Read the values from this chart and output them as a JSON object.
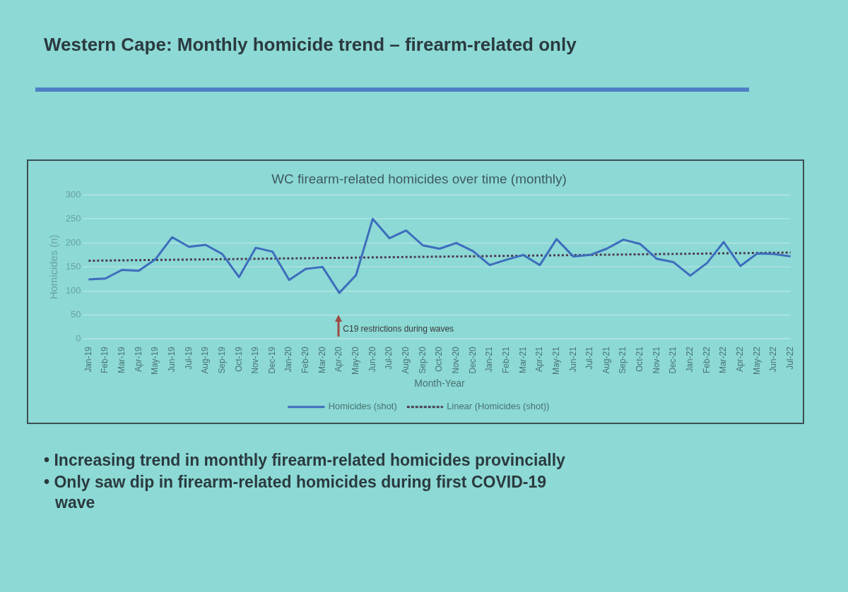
{
  "chart_data": {
    "type": "line",
    "title": "Western Cape: Monthly homicide trend – firearm-related only",
    "subtitle": "WC firearm-related homicides over time (monthly)",
    "xlabel": "Month-Year",
    "ylabel": "Homicides (n)",
    "categories": [
      "Jan-19",
      "Feb-19",
      "Mar-19",
      "Apr-19",
      "May-19",
      "Jun-19",
      "Jul-19",
      "Aug-19",
      "Sep-19",
      "Oct-19",
      "Nov-19",
      "Dec-19",
      "Jan-20",
      "Feb-20",
      "Mar-20",
      "Apr-20",
      "May-20",
      "Jun-20",
      "Jul-20",
      "Aug-20",
      "Sep-20",
      "Oct-20",
      "Nov-20",
      "Dec-20",
      "Jan-21",
      "Feb-21",
      "Mar-21",
      "Apr-21",
      "May-21",
      "Jun-21",
      "Jul-21",
      "Aug-21",
      "Sep-21",
      "Oct-21",
      "Nov-21",
      "Dec-21",
      "Jan-22",
      "Feb-22",
      "Mar-22",
      "Apr-22",
      "May-22",
      "Jun-22",
      "Jul-22"
    ],
    "series": [
      {
        "name": "Homicides (shot)",
        "color": "#3d6dbd",
        "values": [
          124,
          126,
          144,
          142,
          166,
          212,
          192,
          196,
          177,
          129,
          190,
          182,
          123,
          146,
          150,
          96,
          133,
          250,
          210,
          226,
          195,
          188,
          200,
          183,
          154,
          165,
          175,
          154,
          208,
          172,
          175,
          188,
          207,
          198,
          167,
          160,
          132,
          158,
          202,
          152,
          178,
          177,
          172
        ]
      },
      {
        "name": "Linear (Homicides (shot))",
        "type": "line",
        "color": "#4b3b4f",
        "line_style": "dotted",
        "x": [
          "Jan-19",
          "Jul-22"
        ],
        "values": [
          163,
          180
        ]
      }
    ],
    "ylim": [
      0,
      300
    ],
    "yticks": [
      0,
      50,
      100,
      150,
      200,
      250,
      300
    ],
    "grid": "y",
    "legend": "bottom",
    "marker": "none",
    "line_style": "solid",
    "annotations": [
      "C19 restrictions during waves",
      "• Increasing trend in monthly firearm-related homicides provincially",
      "• Only saw dip in firearm-related homicides during first COVID-19 wave"
    ]
  }
}
